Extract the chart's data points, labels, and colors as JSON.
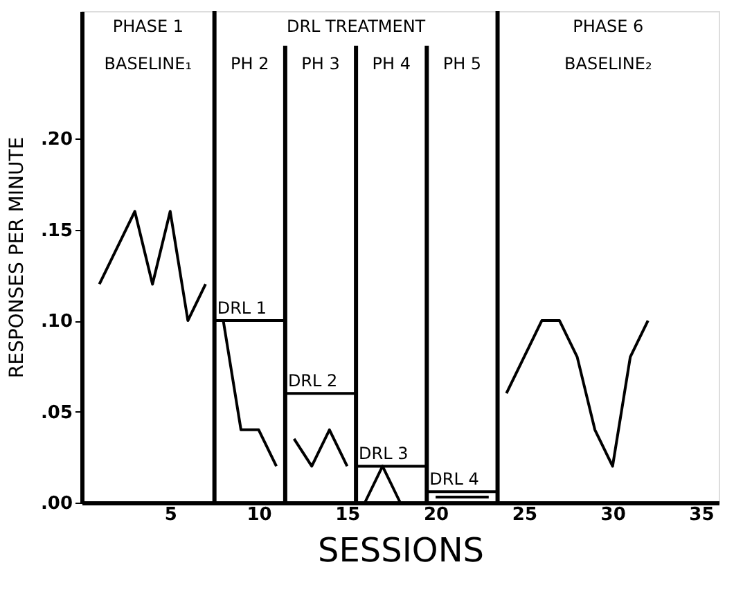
{
  "chart_data": {
    "type": "line",
    "xlabel": "SESSIONS",
    "ylabel": "RESPONSES   PER   MINUTE",
    "xlim": [
      0,
      36
    ],
    "xticks": [
      5,
      10,
      15,
      20,
      25,
      30,
      35
    ],
    "ylim": [
      0,
      0.27
    ],
    "yticks": [
      {
        "value": 0,
        "label": ".00"
      },
      {
        "value": 0.05,
        "label": ".05"
      },
      {
        "value": 0.1,
        "label": ".10"
      },
      {
        "value": 0.15,
        "label": ".15"
      },
      {
        "value": 0.2,
        "label": ".20"
      }
    ],
    "grid": false,
    "legend": false,
    "marker": "none",
    "line_style": "solid",
    "series": [
      {
        "color": "#000000",
        "x": [
          1,
          3,
          4,
          5,
          6,
          7
        ],
        "values": [
          0.12,
          0.16,
          0.12,
          0.16,
          0.1,
          0.12
        ]
      },
      {
        "color": "#000000",
        "x": [
          8,
          9,
          10,
          11
        ],
        "values": [
          0.1,
          0.04,
          0.04,
          0.02
        ]
      },
      {
        "color": "#000000",
        "x": [
          12,
          13,
          14,
          15
        ],
        "values": [
          0.035,
          0.02,
          0.04,
          0.02
        ]
      },
      {
        "color": "#000000",
        "x": [
          16,
          17,
          18,
          19
        ],
        "values": [
          0.0,
          0.02,
          0.0,
          0.0
        ]
      },
      {
        "color": "#000000",
        "x": [
          20,
          21,
          22,
          23
        ],
        "values": [
          0.003,
          0.003,
          0.003,
          0.003
        ]
      },
      {
        "color": "#000000",
        "x": [
          24,
          26,
          27,
          28,
          29,
          30,
          31,
          32
        ],
        "values": [
          0.06,
          0.1,
          0.1,
          0.08,
          0.04,
          0.02,
          0.08,
          0.1
        ]
      },
      {
        "name": "DRL 1",
        "color": "#000000",
        "x": [
          7.5,
          11.5
        ],
        "values": [
          0.1,
          0.1
        ]
      },
      {
        "name": "DRL 2",
        "color": "#000000",
        "x": [
          11.5,
          15.5
        ],
        "values": [
          0.06,
          0.06
        ]
      },
      {
        "name": "DRL 3",
        "color": "#000000",
        "x": [
          15.5,
          19.5
        ],
        "values": [
          0.02,
          0.02
        ]
      },
      {
        "name": "DRL 4",
        "color": "#000000",
        "x": [
          19.5,
          23.5
        ],
        "values": [
          0.006,
          0.006
        ]
      }
    ],
    "ref_lines": [
      {
        "axis": "x",
        "value": 7.5,
        "color": "#000000"
      },
      {
        "axis": "x",
        "value": 11.5,
        "color": "#000000"
      },
      {
        "axis": "x",
        "value": 15.5,
        "color": "#000000"
      },
      {
        "axis": "x",
        "value": 19.5,
        "color": "#000000"
      },
      {
        "axis": "x",
        "value": 23.5,
        "color": "#000000"
      }
    ],
    "annotations": [
      "PHASE 1",
      "BASELINE₁",
      "DRL   TREATMENT",
      "PH 2",
      "PH 3",
      "PH 4",
      "PH 5",
      "PHASE 6",
      "BASELINE₂"
    ]
  }
}
